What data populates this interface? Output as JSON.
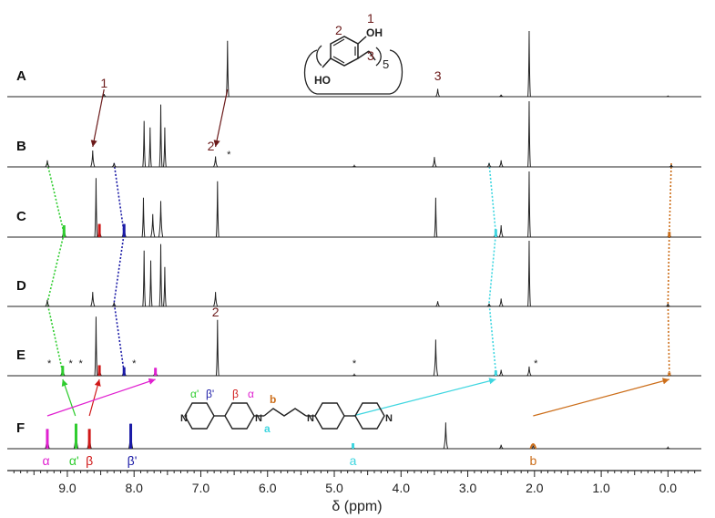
{
  "chart_data": {
    "type": "line",
    "title": "",
    "xlabel": "δ (ppm)",
    "ylabel": "",
    "xlim": [
      9.9,
      -0.5
    ],
    "x_reversed": true,
    "x_ticks": [
      "9.0",
      "8.0",
      "7.0",
      "6.0",
      "5.0",
      "4.0",
      "3.0",
      "2.0",
      "1.0",
      "0.0"
    ],
    "grid": false,
    "colors": {
      "spectrum": "#222222",
      "label_dark": "#6b1a1a",
      "green": "#2ecc2e",
      "blue": "#1a1aa6",
      "cyan": "#3fd6e0",
      "orange": "#cc6e1a",
      "magenta": "#e020d0",
      "red": "#d01818"
    },
    "series": [
      {
        "name": "A",
        "peaks": [
          {
            "x": 8.45,
            "h": 0.04
          },
          {
            "x": 6.6,
            "h": 0.85
          },
          {
            "x": 3.45,
            "h": 0.12
          },
          {
            "x": 2.5,
            "h": 0.03
          },
          {
            "x": 2.08,
            "h": 1.0
          },
          {
            "x": 0.0,
            "h": 0.01
          }
        ]
      },
      {
        "name": "B",
        "peaks": [
          {
            "x": 9.3,
            "h": 0.1
          },
          {
            "x": 8.62,
            "h": 0.25
          },
          {
            "x": 8.3,
            "h": 0.06
          },
          {
            "x": 7.85,
            "h": 0.7
          },
          {
            "x": 7.76,
            "h": 0.6
          },
          {
            "x": 7.6,
            "h": 0.95
          },
          {
            "x": 7.54,
            "h": 0.6
          },
          {
            "x": 6.78,
            "h": 0.16
          },
          {
            "x": 4.7,
            "h": 0.02
          },
          {
            "x": 3.5,
            "h": 0.15
          },
          {
            "x": 2.68,
            "h": 0.06
          },
          {
            "x": 2.5,
            "h": 0.1
          },
          {
            "x": 2.08,
            "h": 1.0
          },
          {
            "x": -0.05,
            "h": 0.03
          }
        ]
      },
      {
        "name": "C",
        "peaks": [
          {
            "x": 9.05,
            "h": 0.18
          },
          {
            "x": 8.57,
            "h": 0.9
          },
          {
            "x": 8.52,
            "h": 0.2
          },
          {
            "x": 8.15,
            "h": 0.2
          },
          {
            "x": 7.86,
            "h": 0.6
          },
          {
            "x": 7.72,
            "h": 0.35
          },
          {
            "x": 7.6,
            "h": 0.55
          },
          {
            "x": 6.75,
            "h": 0.85
          },
          {
            "x": 3.48,
            "h": 0.6
          },
          {
            "x": 2.58,
            "h": 0.12
          },
          {
            "x": 2.5,
            "h": 0.18
          },
          {
            "x": 2.08,
            "h": 1.0
          },
          {
            "x": -0.02,
            "h": 0.08
          }
        ]
      },
      {
        "name": "D",
        "peaks": [
          {
            "x": 9.3,
            "h": 0.1
          },
          {
            "x": 8.62,
            "h": 0.22
          },
          {
            "x": 8.3,
            "h": 0.06
          },
          {
            "x": 7.85,
            "h": 0.85
          },
          {
            "x": 7.75,
            "h": 0.7
          },
          {
            "x": 7.6,
            "h": 0.95
          },
          {
            "x": 7.54,
            "h": 0.6
          },
          {
            "x": 6.78,
            "h": 0.22
          },
          {
            "x": 3.45,
            "h": 0.08
          },
          {
            "x": 2.68,
            "h": 0.04
          },
          {
            "x": 2.5,
            "h": 0.12
          },
          {
            "x": 2.08,
            "h": 1.0
          },
          {
            "x": 0.0,
            "h": 0.04
          }
        ]
      },
      {
        "name": "E",
        "peaks": [
          {
            "x": 9.07,
            "h": 0.15
          },
          {
            "x": 8.57,
            "h": 0.9
          },
          {
            "x": 8.52,
            "h": 0.16
          },
          {
            "x": 8.15,
            "h": 0.13
          },
          {
            "x": 7.68,
            "h": 0.12
          },
          {
            "x": 6.75,
            "h": 0.85
          },
          {
            "x": 4.7,
            "h": 0.02
          },
          {
            "x": 3.48,
            "h": 0.55
          },
          {
            "x": 2.58,
            "h": 0.08
          },
          {
            "x": 2.5,
            "h": 0.09
          },
          {
            "x": 2.08,
            "h": 0.14
          },
          {
            "x": -0.02,
            "h": 0.05
          }
        ]
      },
      {
        "name": "F",
        "peaks": [
          {
            "x": 9.3,
            "h": 0.3
          },
          {
            "x": 8.87,
            "h": 0.38
          },
          {
            "x": 8.67,
            "h": 0.3
          },
          {
            "x": 8.05,
            "h": 0.38
          },
          {
            "x": 4.72,
            "h": 0.05
          },
          {
            "x": 3.33,
            "h": 0.4
          },
          {
            "x": 2.5,
            "h": 0.06
          },
          {
            "x": 2.02,
            "h": 0.05
          },
          {
            "x": 0.0,
            "h": 0.02
          }
        ]
      }
    ],
    "peak_labels": [
      {
        "text": "1",
        "spectrum": "A",
        "x": 8.45,
        "color": "#6b1a1a"
      },
      {
        "text": "2",
        "spectrum": "A",
        "x": 6.6,
        "color": "#6b1a1a"
      },
      {
        "text": "3",
        "spectrum": "A",
        "x": 3.45,
        "color": "#6b1a1a"
      },
      {
        "text": "2",
        "spectrum": "B",
        "x": 6.85,
        "color": "#6b1a1a"
      },
      {
        "text": "2",
        "spectrum": "E",
        "x": 6.78,
        "color": "#6b1a1a"
      },
      {
        "text": "α",
        "spectrum": "F",
        "x": 9.32,
        "color": "#e020d0"
      },
      {
        "text": "α'",
        "spectrum": "F",
        "x": 8.9,
        "color": "#2ecc2e"
      },
      {
        "text": "β",
        "spectrum": "F",
        "x": 8.67,
        "color": "#d01818"
      },
      {
        "text": "β'",
        "spectrum": "F",
        "x": 8.03,
        "color": "#1a1aa6"
      },
      {
        "text": "a",
        "spectrum": "F",
        "x": 4.72,
        "color": "#3fd6e0"
      },
      {
        "text": "b",
        "spectrum": "F",
        "x": 2.02,
        "color": "#cc6e1a"
      }
    ],
    "star_marks": [
      {
        "spectrum": "B",
        "x": 6.58
      },
      {
        "spectrum": "E",
        "x": 9.27
      },
      {
        "spectrum": "E",
        "x": 8.95
      },
      {
        "spectrum": "E",
        "x": 8.8
      },
      {
        "spectrum": "E",
        "x": 8.0
      },
      {
        "spectrum": "E",
        "x": 4.7
      },
      {
        "spectrum": "E",
        "x": 1.98
      }
    ],
    "correlation_lines": [
      {
        "color": "#2ecc2e",
        "style": "dotted",
        "points": [
          [
            "B",
            9.3
          ],
          [
            "C",
            9.05
          ],
          [
            "D",
            9.3
          ],
          [
            "E",
            9.07
          ]
        ]
      },
      {
        "color": "#1a1aa6",
        "style": "dotted",
        "points": [
          [
            "B",
            8.3
          ],
          [
            "C",
            8.15
          ],
          [
            "D",
            8.3
          ],
          [
            "E",
            8.15
          ]
        ]
      },
      {
        "color": "#3fd6e0",
        "style": "dotted",
        "points": [
          [
            "B",
            2.68
          ],
          [
            "C",
            2.58
          ],
          [
            "D",
            2.68
          ],
          [
            "E",
            2.58
          ]
        ]
      },
      {
        "color": "#cc6e1a",
        "style": "dotted",
        "points": [
          [
            "B",
            -0.05
          ],
          [
            "C",
            -0.02
          ],
          [
            "D",
            0.0
          ],
          [
            "E",
            -0.02
          ]
        ]
      }
    ],
    "arrows": [
      {
        "color": "#6b1a1a",
        "from": [
          "A",
          8.45
        ],
        "to": [
          "B",
          8.62
        ]
      },
      {
        "color": "#6b1a1a",
        "from": [
          "A",
          6.6
        ],
        "to": [
          "B",
          6.78
        ]
      },
      {
        "color": "#2ecc2e",
        "from": [
          "F",
          8.88
        ],
        "to": [
          "E",
          9.07
        ]
      },
      {
        "color": "#d01818",
        "from": [
          "F",
          8.67
        ],
        "to": [
          "E",
          8.52
        ]
      },
      {
        "color": "#e020d0",
        "from": [
          "F",
          9.3
        ],
        "to": [
          "E",
          7.68
        ]
      },
      {
        "color": "#3fd6e0",
        "from": [
          "F",
          4.72
        ],
        "to": [
          "E",
          2.58
        ]
      },
      {
        "color": "#cc6e1a",
        "from": [
          "F",
          2.02
        ],
        "to": [
          "E",
          -0.02
        ]
      }
    ],
    "structure_host": {
      "labels": {
        "position_1": "1",
        "position_2": "2",
        "position_3": "3",
        "oh_top": "OH",
        "oh_bottom": "HO",
        "repeat": "5"
      }
    },
    "structure_guest": {
      "labels": {
        "alpha_prime": "α'",
        "beta_prime": "β'",
        "beta": "β",
        "alpha": "α",
        "a": "a",
        "b": "b",
        "n": "N",
        "n_plus": "N"
      }
    }
  }
}
